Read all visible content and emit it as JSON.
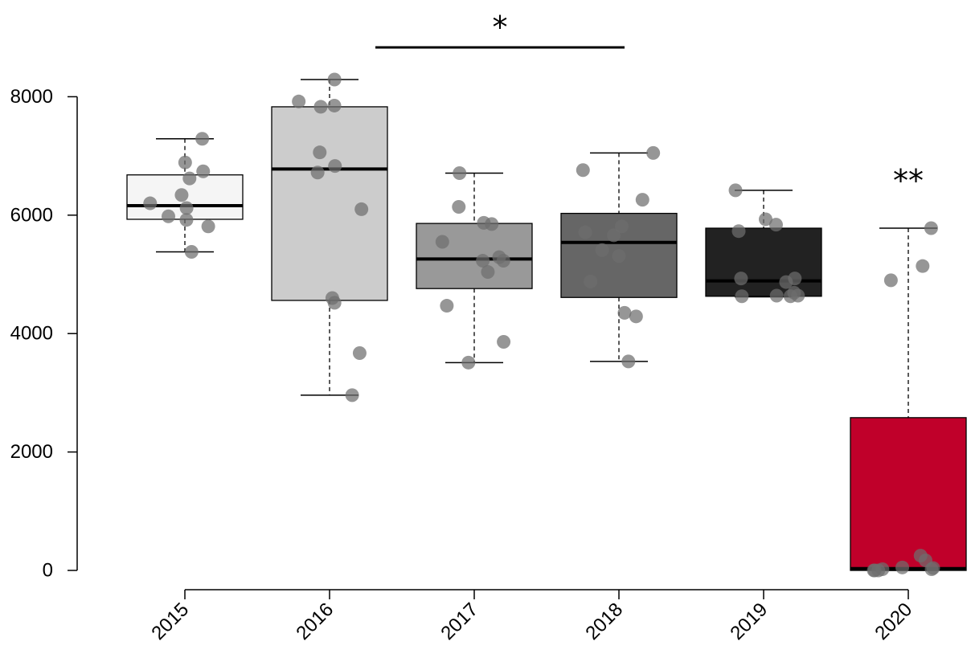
{
  "chart_data": {
    "type": "box",
    "title": "",
    "xlabel": "",
    "ylabel": "",
    "ylim": [
      0,
      8500
    ],
    "y_ticks": [
      0,
      2000,
      4000,
      6000,
      8000
    ],
    "y_tick_labels": [
      "0",
      "2000",
      "4000",
      "6000",
      "8000"
    ],
    "categories": [
      "2015",
      "2016",
      "2017",
      "2018",
      "2019",
      "2020"
    ],
    "grid": false,
    "legend": "none",
    "boxes": [
      {
        "category": "2015",
        "fill": "#f5f5f5",
        "whisker_low": 5380,
        "q1": 5930,
        "median": 6160,
        "q3": 6680,
        "whisker_high": 7290,
        "points": [
          7290,
          6620,
          6340,
          5980,
          5810,
          6740,
          6890,
          6120,
          5920,
          6200,
          5380
        ]
      },
      {
        "category": "2016",
        "fill": "#cccccc",
        "whisker_low": 2960,
        "q1": 4560,
        "median": 6780,
        "q3": 7830,
        "whisker_high": 8290,
        "points": [
          7920,
          7060,
          6720,
          6100,
          4600,
          4520,
          7850,
          6830,
          8290,
          7830,
          3670,
          2960
        ]
      },
      {
        "category": "2017",
        "fill": "#999999",
        "whisker_low": 3510,
        "q1": 4760,
        "median": 5260,
        "q3": 5860,
        "whisker_high": 6710,
        "points": [
          3510,
          6710,
          5230,
          5230,
          3860,
          5040,
          4470,
          5290,
          5550,
          6140,
          5850,
          5870
        ]
      },
      {
        "category": "2018",
        "fill": "#666666",
        "whisker_low": 3530,
        "q1": 4610,
        "median": 5540,
        "q3": 6030,
        "whisker_high": 7050,
        "points": [
          6260,
          5810,
          5710,
          4880,
          5410,
          7050,
          5660,
          6760,
          5310,
          4350,
          4290,
          3530
        ]
      },
      {
        "category": "2019",
        "fill": "#222222",
        "whisker_low": 4620,
        "q1": 4630,
        "median": 4890,
        "q3": 5780,
        "whisker_high": 6420,
        "points": [
          5730,
          6420,
          4870,
          4630,
          4930,
          4640,
          4930,
          5840,
          4640,
          4630,
          5930,
          4690
        ]
      },
      {
        "category": "2020",
        "fill": "#c0002a",
        "whisker_low": 0,
        "q1": 0,
        "median": 30,
        "q3": 2580,
        "whisker_high": 5780,
        "points": [
          5780,
          0,
          0,
          20,
          0,
          4900,
          20,
          250,
          50,
          170,
          40,
          5140
        ]
      }
    ],
    "annotations": [
      {
        "text": "*",
        "from_category": "2016",
        "to_category": "2018"
      },
      {
        "text": "**",
        "category": "2020"
      }
    ],
    "point_color": "rgba(110,110,110,0.72)"
  }
}
